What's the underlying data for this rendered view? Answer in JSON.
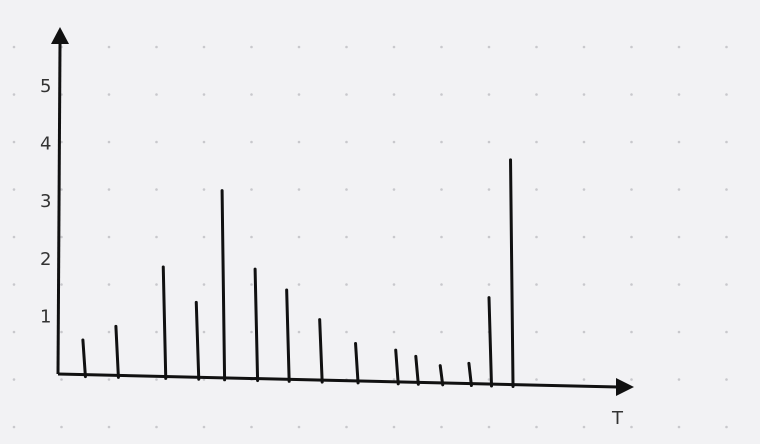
{
  "chart_data": {
    "type": "bar",
    "title": "",
    "xlabel": "T",
    "ylabel": "",
    "ylim": [
      0,
      5.8
    ],
    "yticks": [
      "1",
      "2",
      "3",
      "4",
      "5"
    ],
    "grid": "dotted",
    "x": [
      1.7,
      4.0,
      7.3,
      9.6,
      11.4,
      13.7,
      15.9,
      18.2,
      20.7,
      23.5,
      24.9,
      26.6,
      28.6,
      30.0,
      31.5
    ],
    "values": [
      0.6,
      0.85,
      1.9,
      1.3,
      3.25,
      1.9,
      1.55,
      1.05,
      0.65,
      0.55,
      0.45,
      0.3,
      0.35,
      1.5,
      3.9
    ]
  },
  "style": {
    "background": "#f2f2f4",
    "axis_color": "#111111",
    "bar_color": "#111111",
    "grid_dot_color": "#c8c8cc"
  }
}
